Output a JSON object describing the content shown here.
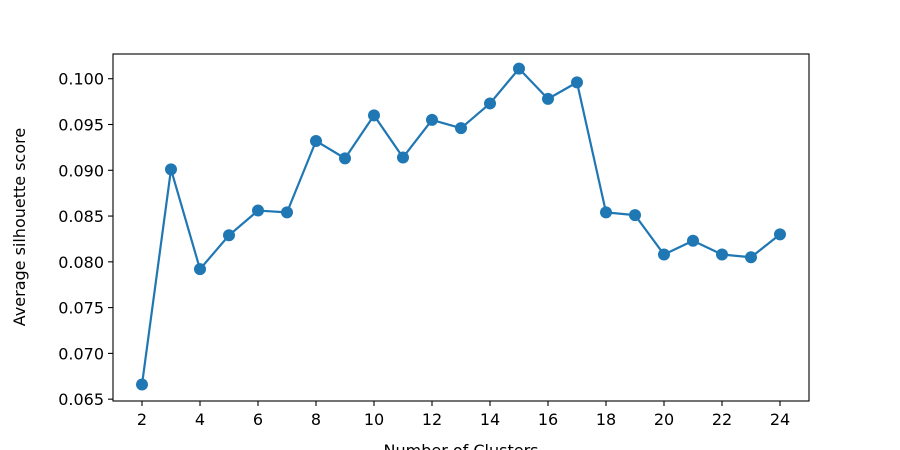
{
  "chart_data": {
    "type": "line",
    "title": "",
    "xlabel": "Number of Clusters",
    "ylabel": "Average silhouette score",
    "x": [
      2,
      3,
      4,
      5,
      6,
      7,
      8,
      9,
      10,
      11,
      12,
      13,
      14,
      15,
      16,
      17,
      18,
      19,
      20,
      21,
      22,
      23,
      24
    ],
    "series": [
      {
        "name": "",
        "color": "#1f77b4",
        "marker": "circle",
        "values": [
          0.0666,
          0.0901,
          0.0792,
          0.0829,
          0.0856,
          0.0854,
          0.0932,
          0.0913,
          0.096,
          0.0914,
          0.0955,
          0.0946,
          0.0973,
          0.1011,
          0.0978,
          0.0996,
          0.0854,
          0.0851,
          0.0808,
          0.0823,
          0.0808,
          0.0805,
          0.083
        ]
      }
    ],
    "xlim": [
      1.0,
      25.0
    ],
    "ylim": [
      0.0648,
      0.1027
    ],
    "xticks": [
      2,
      4,
      6,
      8,
      10,
      12,
      14,
      16,
      18,
      20,
      22,
      24
    ],
    "xtick_labels": [
      "2",
      "4",
      "6",
      "8",
      "10",
      "12",
      "14",
      "16",
      "18",
      "20",
      "22",
      "24"
    ],
    "yticks": [
      0.065,
      0.07,
      0.075,
      0.08,
      0.085,
      0.09,
      0.095,
      0.1
    ],
    "ytick_labels": [
      "0.065",
      "0.070",
      "0.075",
      "0.080",
      "0.085",
      "0.090",
      "0.095",
      "0.100"
    ],
    "grid": false,
    "legend": "none"
  }
}
